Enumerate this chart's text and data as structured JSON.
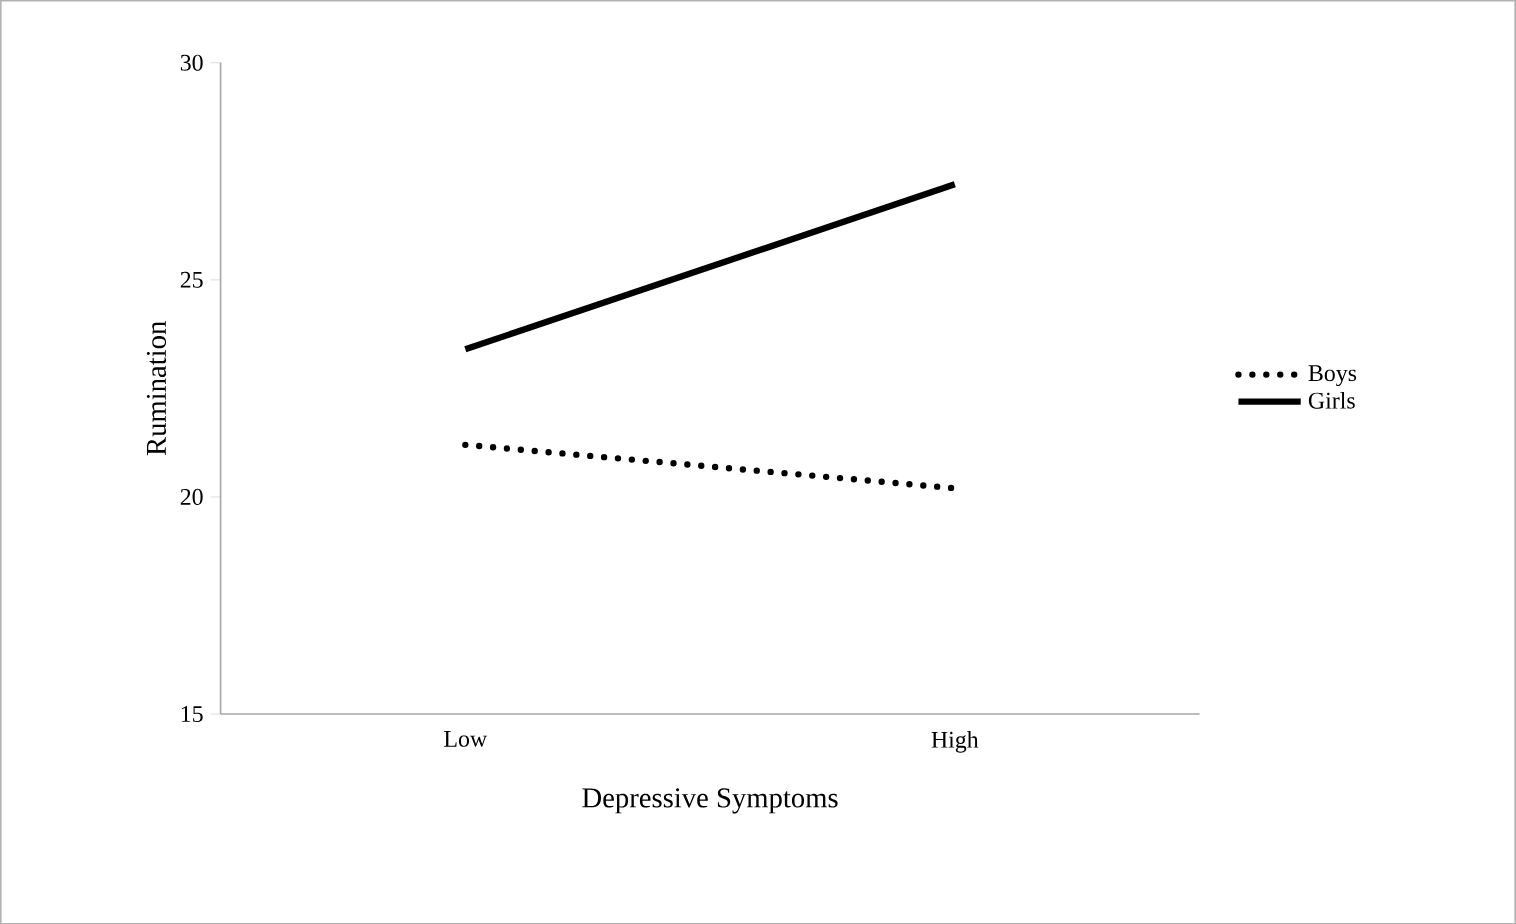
{
  "chart_data": {
    "type": "line",
    "xlabel": "Depressive Symptoms",
    "ylabel": "Rumination",
    "categories": [
      "Low",
      "High"
    ],
    "series": [
      {
        "name": "Boys",
        "color": "#000000",
        "values": [
          21.2,
          20.2
        ],
        "line_style": "dotted"
      },
      {
        "name": "Girls",
        "color": "#000000",
        "values": [
          23.4,
          27.2
        ],
        "line_style": "solid"
      }
    ],
    "ylim": [
      15,
      30
    ],
    "yticks": [
      15,
      20,
      25,
      30
    ],
    "grid": false,
    "legend": "right",
    "marker": "none"
  }
}
